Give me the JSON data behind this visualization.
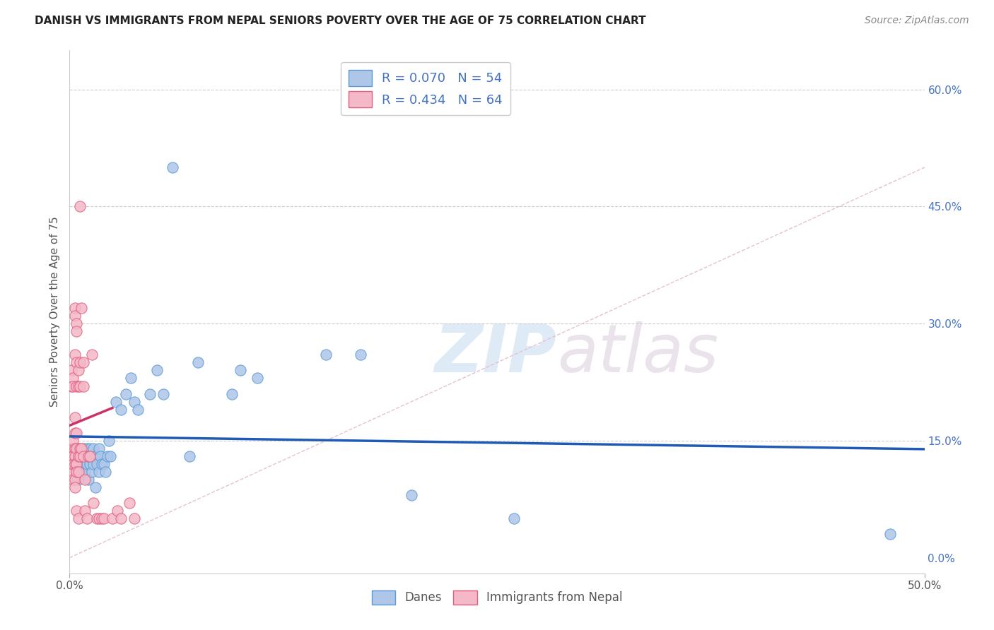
{
  "title": "DANISH VS IMMIGRANTS FROM NEPAL SENIORS POVERTY OVER THE AGE OF 75 CORRELATION CHART",
  "source": "Source: ZipAtlas.com",
  "ylabel": "Seniors Poverty Over the Age of 75",
  "xlim": [
    0.0,
    0.5
  ],
  "ylim": [
    -0.02,
    0.65
  ],
  "xtick_positions": [
    0.0,
    0.5
  ],
  "xticklabels": [
    "0.0%",
    "50.0%"
  ],
  "yticks_right": [
    0.0,
    0.15,
    0.3,
    0.45,
    0.6
  ],
  "yticklabels_right": [
    "0.0%",
    "15.0%",
    "30.0%",
    "45.0%",
    "60.0%"
  ],
  "danes_color": "#aec6e8",
  "danes_edge_color": "#5b9bd5",
  "nepal_color": "#f4b8c8",
  "nepal_edge_color": "#e06080",
  "danes_R": 0.07,
  "danes_N": 54,
  "nepal_R": 0.434,
  "nepal_N": 64,
  "danes_line_color": "#1f5bb5",
  "nepal_line_color": "#cc3366",
  "diagonal_color": "#e8c0cc",
  "watermark_zip": "ZIP",
  "watermark_atlas": "atlas",
  "legend_label_danes": "Danes",
  "legend_label_nepal": "Immigrants from Nepal",
  "danes_scatter": [
    [
      0.002,
      0.13
    ],
    [
      0.003,
      0.12
    ],
    [
      0.004,
      0.11
    ],
    [
      0.005,
      0.14
    ],
    [
      0.005,
      0.1
    ],
    [
      0.006,
      0.13
    ],
    [
      0.007,
      0.12
    ],
    [
      0.007,
      0.11
    ],
    [
      0.008,
      0.14
    ],
    [
      0.008,
      0.12
    ],
    [
      0.009,
      0.13
    ],
    [
      0.009,
      0.11
    ],
    [
      0.01,
      0.14
    ],
    [
      0.01,
      0.12
    ],
    [
      0.011,
      0.13
    ],
    [
      0.011,
      0.1
    ],
    [
      0.012,
      0.14
    ],
    [
      0.012,
      0.12
    ],
    [
      0.013,
      0.13
    ],
    [
      0.013,
      0.11
    ],
    [
      0.014,
      0.14
    ],
    [
      0.014,
      0.12
    ],
    [
      0.015,
      0.09
    ],
    [
      0.015,
      0.13
    ],
    [
      0.016,
      0.12
    ],
    [
      0.017,
      0.11
    ],
    [
      0.017,
      0.14
    ],
    [
      0.018,
      0.13
    ],
    [
      0.019,
      0.12
    ],
    [
      0.02,
      0.12
    ],
    [
      0.021,
      0.11
    ],
    [
      0.022,
      0.13
    ],
    [
      0.023,
      0.15
    ],
    [
      0.024,
      0.13
    ],
    [
      0.027,
      0.2
    ],
    [
      0.03,
      0.19
    ],
    [
      0.033,
      0.21
    ],
    [
      0.036,
      0.23
    ],
    [
      0.038,
      0.2
    ],
    [
      0.04,
      0.19
    ],
    [
      0.047,
      0.21
    ],
    [
      0.051,
      0.24
    ],
    [
      0.055,
      0.21
    ],
    [
      0.06,
      0.5
    ],
    [
      0.07,
      0.13
    ],
    [
      0.075,
      0.25
    ],
    [
      0.095,
      0.21
    ],
    [
      0.1,
      0.24
    ],
    [
      0.11,
      0.23
    ],
    [
      0.15,
      0.26
    ],
    [
      0.17,
      0.26
    ],
    [
      0.2,
      0.08
    ],
    [
      0.26,
      0.05
    ],
    [
      0.48,
      0.03
    ]
  ],
  "nepal_scatter": [
    [
      0.0,
      0.125
    ],
    [
      0.0,
      0.12
    ],
    [
      0.001,
      0.14
    ],
    [
      0.001,
      0.13
    ],
    [
      0.001,
      0.12
    ],
    [
      0.001,
      0.11
    ],
    [
      0.001,
      0.22
    ],
    [
      0.001,
      0.24
    ],
    [
      0.002,
      0.23
    ],
    [
      0.002,
      0.22
    ],
    [
      0.002,
      0.15
    ],
    [
      0.002,
      0.13
    ],
    [
      0.002,
      0.12
    ],
    [
      0.002,
      0.1
    ],
    [
      0.003,
      0.32
    ],
    [
      0.003,
      0.31
    ],
    [
      0.003,
      0.26
    ],
    [
      0.003,
      0.18
    ],
    [
      0.003,
      0.16
    ],
    [
      0.003,
      0.14
    ],
    [
      0.003,
      0.13
    ],
    [
      0.003,
      0.12
    ],
    [
      0.003,
      0.1
    ],
    [
      0.003,
      0.09
    ],
    [
      0.004,
      0.3
    ],
    [
      0.004,
      0.29
    ],
    [
      0.004,
      0.25
    ],
    [
      0.004,
      0.22
    ],
    [
      0.004,
      0.16
    ],
    [
      0.004,
      0.14
    ],
    [
      0.004,
      0.12
    ],
    [
      0.004,
      0.11
    ],
    [
      0.004,
      0.06
    ],
    [
      0.005,
      0.24
    ],
    [
      0.005,
      0.22
    ],
    [
      0.005,
      0.13
    ],
    [
      0.005,
      0.11
    ],
    [
      0.005,
      0.05
    ],
    [
      0.006,
      0.45
    ],
    [
      0.006,
      0.25
    ],
    [
      0.006,
      0.22
    ],
    [
      0.006,
      0.14
    ],
    [
      0.006,
      0.13
    ],
    [
      0.007,
      0.32
    ],
    [
      0.007,
      0.14
    ],
    [
      0.008,
      0.25
    ],
    [
      0.008,
      0.22
    ],
    [
      0.008,
      0.13
    ],
    [
      0.009,
      0.1
    ],
    [
      0.009,
      0.06
    ],
    [
      0.01,
      0.05
    ],
    [
      0.011,
      0.13
    ],
    [
      0.012,
      0.13
    ],
    [
      0.013,
      0.26
    ],
    [
      0.014,
      0.07
    ],
    [
      0.016,
      0.05
    ],
    [
      0.017,
      0.05
    ],
    [
      0.019,
      0.05
    ],
    [
      0.02,
      0.05
    ],
    [
      0.025,
      0.05
    ],
    [
      0.028,
      0.06
    ],
    [
      0.03,
      0.05
    ],
    [
      0.035,
      0.07
    ],
    [
      0.038,
      0.05
    ]
  ]
}
